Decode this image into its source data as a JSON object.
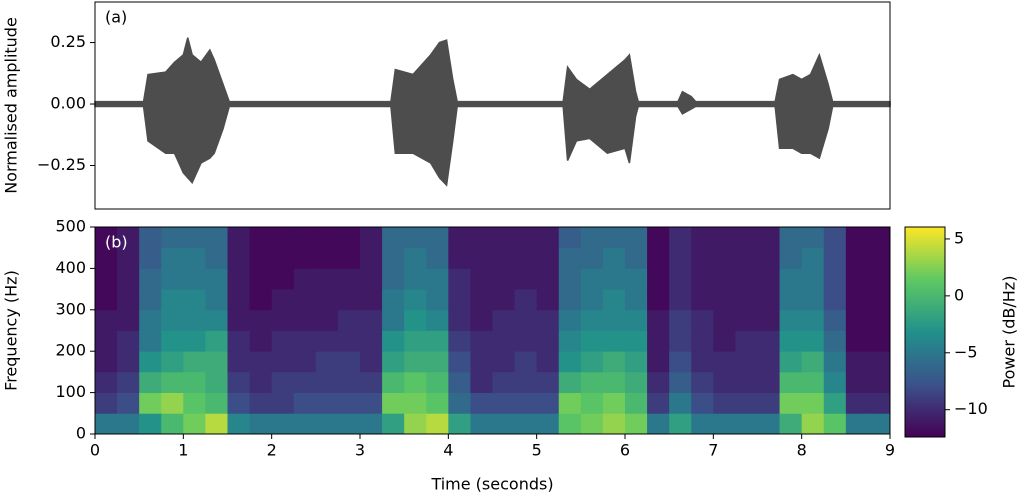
{
  "chart_data": [
    {
      "type": "envelope",
      "panel_label": "(a)",
      "ylabel": "Normalised amplitude",
      "color": "#4d4d4d",
      "x": [
        0,
        0.55,
        0.6,
        0.8,
        0.9,
        1.0,
        1.05,
        1.1,
        1.2,
        1.3,
        1.35,
        1.45,
        1.52,
        3.35,
        3.4,
        3.6,
        3.8,
        3.9,
        3.98,
        4.05,
        4.1,
        5.3,
        5.35,
        5.45,
        5.6,
        5.8,
        6.0,
        6.05,
        6.12,
        6.15,
        6.6,
        6.65,
        6.75,
        6.8,
        7.7,
        7.75,
        7.9,
        8.0,
        8.1,
        8.2,
        8.3,
        8.35,
        9.0
      ],
      "series": [
        {
          "name": "upper",
          "values": [
            0.01,
            0.01,
            0.12,
            0.13,
            0.17,
            0.2,
            0.27,
            0.2,
            0.17,
            0.22,
            0.18,
            0.08,
            0.01,
            0.01,
            0.14,
            0.12,
            0.2,
            0.25,
            0.26,
            0.1,
            0.01,
            0.01,
            0.15,
            0.1,
            0.06,
            0.12,
            0.18,
            0.2,
            0.05,
            0.01,
            0.01,
            0.05,
            0.03,
            0.01,
            0.01,
            0.1,
            0.12,
            0.1,
            0.12,
            0.2,
            0.08,
            0.01,
            0.01
          ]
        },
        {
          "name": "lower",
          "values": [
            -0.01,
            -0.01,
            -0.15,
            -0.2,
            -0.2,
            -0.28,
            -0.3,
            -0.32,
            -0.24,
            -0.22,
            -0.2,
            -0.1,
            -0.01,
            -0.01,
            -0.2,
            -0.2,
            -0.24,
            -0.3,
            -0.33,
            -0.15,
            -0.01,
            -0.01,
            -0.23,
            -0.15,
            -0.14,
            -0.2,
            -0.18,
            -0.24,
            -0.05,
            -0.01,
            -0.01,
            -0.04,
            -0.02,
            -0.01,
            -0.01,
            -0.18,
            -0.18,
            -0.2,
            -0.2,
            -0.22,
            -0.1,
            -0.01,
            -0.01
          ]
        }
      ],
      "xlim": [
        0,
        9
      ],
      "ylim": [
        -0.427,
        0.415
      ],
      "yticks": [
        {
          "value": -0.25,
          "label": "−0.25"
        },
        {
          "value": 0,
          "label": "0.00"
        },
        {
          "value": 0.25,
          "label": "0.25"
        }
      ]
    },
    {
      "type": "heatmap",
      "panel_label": "(b)",
      "xlabel": "Time (seconds)",
      "ylabel": "Frequency (Hz)",
      "colorbar_label": "Power (dB/Hz)",
      "colormap": "viridis",
      "x_bins": [
        0,
        0.25,
        0.5,
        0.75,
        1,
        1.25,
        1.5,
        1.75,
        2,
        2.25,
        2.5,
        2.75,
        3,
        3.25,
        3.5,
        3.75,
        4,
        4.25,
        4.5,
        4.75,
        5,
        5.25,
        5.5,
        5.75,
        6,
        6.25,
        6.5,
        6.75,
        7,
        7.25,
        7.5,
        7.75,
        8,
        8.25,
        8.5,
        8.75,
        9
      ],
      "y_bins": [
        0,
        50,
        100,
        150,
        200,
        250,
        300,
        350,
        400,
        450,
        500
      ],
      "z": [
        [
          -5,
          -9,
          -10,
          -11,
          -11,
          -11,
          -12,
          -12,
          -12,
          -12
        ],
        [
          -5,
          -8,
          -9,
          -10,
          -10,
          -11,
          -11,
          -11,
          -11,
          -11
        ],
        [
          -3,
          2,
          -1,
          -3,
          -5,
          -5,
          -6,
          -6,
          -7,
          -7
        ],
        [
          0,
          3,
          0,
          -2,
          -3,
          -4,
          -4,
          -5,
          -5,
          -6
        ],
        [
          2,
          1,
          0,
          -1,
          -3,
          -4,
          -4,
          -5,
          -5,
          -6
        ],
        [
          4,
          0,
          -1,
          -1,
          -2,
          -4,
          -5,
          -5,
          -6,
          -6
        ],
        [
          -4,
          -8,
          -9,
          -10,
          -10,
          -11,
          -11,
          -11,
          -11,
          -11
        ],
        [
          -5,
          -9,
          -10,
          -10,
          -11,
          -11,
          -12,
          -12,
          -12,
          -12
        ],
        [
          -5,
          -9,
          -9,
          -10,
          -10,
          -11,
          -11,
          -12,
          -12,
          -12
        ],
        [
          -5,
          -8,
          -9,
          -10,
          -10,
          -11,
          -11,
          -11,
          -12,
          -12
        ],
        [
          -5,
          -8,
          -9,
          -9,
          -10,
          -11,
          -11,
          -11,
          -12,
          -12
        ],
        [
          -5,
          -8,
          -9,
          -9,
          -10,
          -10,
          -11,
          -11,
          -12,
          -12
        ],
        [
          -5,
          -8,
          -9,
          -10,
          -10,
          -10,
          -11,
          -11,
          -11,
          -11
        ],
        [
          -2,
          2,
          0,
          -2,
          -3,
          -5,
          -5,
          -6,
          -6,
          -6
        ],
        [
          3,
          2,
          1,
          -1,
          -2,
          -3,
          -4,
          -5,
          -5,
          -6
        ],
        [
          4,
          1,
          0,
          -1,
          -2,
          -4,
          -5,
          -5,
          -6,
          -6
        ],
        [
          -2,
          -6,
          -7,
          -8,
          -9,
          -10,
          -10,
          -10,
          -11,
          -11
        ],
        [
          -5,
          -8,
          -10,
          -10,
          -10,
          -11,
          -11,
          -11,
          -11,
          -11
        ],
        [
          -5,
          -8,
          -9,
          -10,
          -10,
          -10,
          -11,
          -11,
          -11,
          -11
        ],
        [
          -5,
          -8,
          -9,
          -9,
          -10,
          -10,
          -10,
          -11,
          -11,
          -11
        ],
        [
          -5,
          -8,
          -9,
          -10,
          -10,
          -10,
          -11,
          -11,
          -11,
          -11
        ],
        [
          1,
          2,
          -1,
          -3,
          -4,
          -5,
          -6,
          -6,
          -6,
          -7
        ],
        [
          2,
          1,
          0,
          -2,
          -3,
          -4,
          -5,
          -5,
          -6,
          -6
        ],
        [
          3,
          2,
          0,
          -1,
          -3,
          -4,
          -4,
          -5,
          -5,
          -6
        ],
        [
          2,
          0,
          -1,
          -2,
          -3,
          -4,
          -5,
          -5,
          -6,
          -6
        ],
        [
          -5,
          -9,
          -10,
          -11,
          -11,
          -11,
          -12,
          -12,
          -12,
          -12
        ],
        [
          -2,
          -5,
          -7,
          -8,
          -9,
          -9,
          -10,
          -10,
          -10,
          -10
        ],
        [
          -5,
          -8,
          -9,
          -10,
          -10,
          -10,
          -11,
          -11,
          -11,
          -11
        ],
        [
          -5,
          -9,
          -10,
          -10,
          -11,
          -11,
          -11,
          -11,
          -11,
          -11
        ],
        [
          -5,
          -9,
          -10,
          -10,
          -10,
          -11,
          -11,
          -11,
          -11,
          -11
        ],
        [
          -5,
          -9,
          -10,
          -10,
          -10,
          -11,
          -11,
          -11,
          -11,
          -11
        ],
        [
          -1,
          2,
          0,
          -2,
          -3,
          -4,
          -5,
          -5,
          -6,
          -6
        ],
        [
          3,
          2,
          0,
          -1,
          -3,
          -4,
          -5,
          -5,
          -5,
          -6
        ],
        [
          1,
          -2,
          -4,
          -5,
          -6,
          -7,
          -8,
          -8,
          -8,
          -8
        ],
        [
          -5,
          -10,
          -11,
          -11,
          -12,
          -12,
          -12,
          -12,
          -12,
          -12
        ],
        [
          -5,
          -10,
          -11,
          -11,
          -12,
          -12,
          -12,
          -12,
          -12,
          -12
        ]
      ],
      "xlim": [
        0,
        9
      ],
      "ylim": [
        0,
        500
      ],
      "xticks": [
        0,
        1,
        2,
        3,
        4,
        5,
        6,
        7,
        8,
        9
      ],
      "yticks": [
        0,
        100,
        200,
        300,
        400,
        500
      ],
      "clim": [
        -12.4,
        6.05
      ],
      "cticks": [
        {
          "value": -10,
          "label": "−10"
        },
        {
          "value": -5,
          "label": "−5"
        },
        0,
        5
      ]
    }
  ]
}
